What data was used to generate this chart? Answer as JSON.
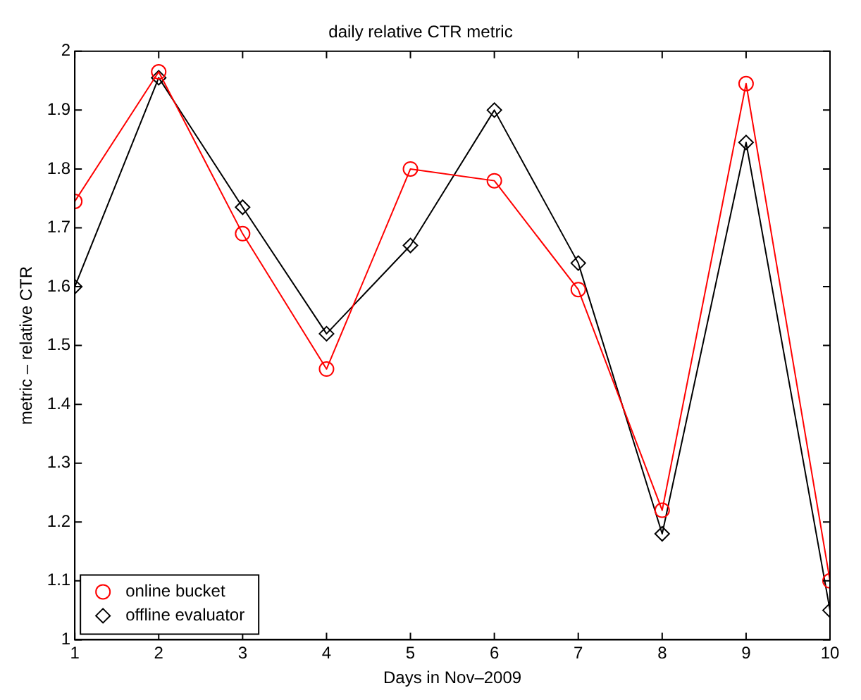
{
  "chart_data": {
    "type": "line",
    "title": "daily relative CTR metric",
    "xlabel": "Days in Nov–2009",
    "ylabel": "metric – relative CTR",
    "x": [
      1,
      2,
      3,
      4,
      5,
      6,
      7,
      8,
      9,
      10
    ],
    "series": [
      {
        "name": "online bucket",
        "color": "#ff0000",
        "marker": "circle",
        "values": [
          1.745,
          1.965,
          1.69,
          1.46,
          1.8,
          1.78,
          1.595,
          1.22,
          1.945,
          1.1
        ]
      },
      {
        "name": "offline evaluator",
        "color": "#000000",
        "marker": "diamond",
        "values": [
          1.6,
          1.955,
          1.735,
          1.52,
          1.67,
          1.9,
          1.64,
          1.18,
          1.845,
          1.05
        ]
      }
    ],
    "xlim": [
      1,
      10
    ],
    "xticks": [
      1,
      2,
      3,
      4,
      5,
      6,
      7,
      8,
      9,
      10
    ],
    "ylim": [
      1,
      2
    ],
    "yticks": [
      1,
      1.1,
      1.2,
      1.3,
      1.4,
      1.5,
      1.6,
      1.7,
      1.8,
      1.9,
      2
    ],
    "grid": false,
    "legend": "bottom left",
    "line_style": "solid"
  }
}
